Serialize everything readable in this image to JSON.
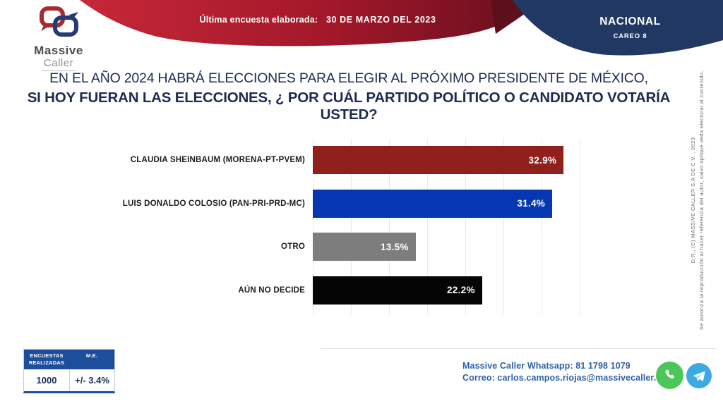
{
  "header": {
    "logo_line1": "Massive",
    "logo_line2": "Caller",
    "banner_label": "Última encuesta elaborada:",
    "banner_date": "30 DE MARZO DEL 2023",
    "region": "NACIONAL",
    "edition": "CAREO 8"
  },
  "title": {
    "line1": "EN EL AÑO 2024 HABRÁ ELECCIONES PARA ELEGIR AL PRÓXIMO PRESIDENTE DE MÉXICO,",
    "line2": "SI HOY FUERAN LAS ELECCIONES, ¿ POR CUÁL PARTIDO POLÍTICO O CANDIDATO VOTARÍA USTED?"
  },
  "chart_data": {
    "type": "bar",
    "orientation": "horizontal",
    "categories": [
      "CLAUDIA SHEINBAUM (MORENA-PT-PVEM)",
      "LUIS DONALDO COLOSIO (PAN-PRI-PRD-MC)",
      "OTRO",
      "AÚN NO DECIDE"
    ],
    "values": [
      32.9,
      31.4,
      13.5,
      22.2
    ],
    "value_labels": [
      "32.9%",
      "31.4%",
      "13.5%",
      "22.2%"
    ],
    "bar_colors": [
      "#8f201c",
      "#0537b2",
      "#7d7d7d",
      "#050505"
    ],
    "xlim": [
      0,
      35
    ],
    "gridline_step": 5,
    "grid": true,
    "legend": false,
    "value_label_position": "inside-end"
  },
  "footer": {
    "stats_table": {
      "headers": [
        "ENCUESTAS REALIZADAS",
        "M.E."
      ],
      "values": [
        "1000",
        "+/- 3.4%"
      ]
    },
    "whatsapp_line": "Massive Caller Whatsapp: 81 1798 1079",
    "email_line": "Correo: carlos.campos.riojas@massivecaller.com"
  },
  "sidebar_note": {
    "line1": "D.R., (C) MASSIVE CALLER S.A DE C.V. , 2023",
    "line2": "Se autoriza la reproducción al hacer referencia del autor, salvo aplique veda electoral al contenido."
  },
  "colors": {
    "banner_red_light": "#c62838",
    "banner_red_dark": "#6b0f1f",
    "banner_navy": "#203862",
    "table_header_blue": "#1d4e9b",
    "contact_blue": "#2e62a9",
    "title_navy": "#1d2b50",
    "whatsapp_green": "#4bc659",
    "telegram_blue": "#3caae2"
  }
}
